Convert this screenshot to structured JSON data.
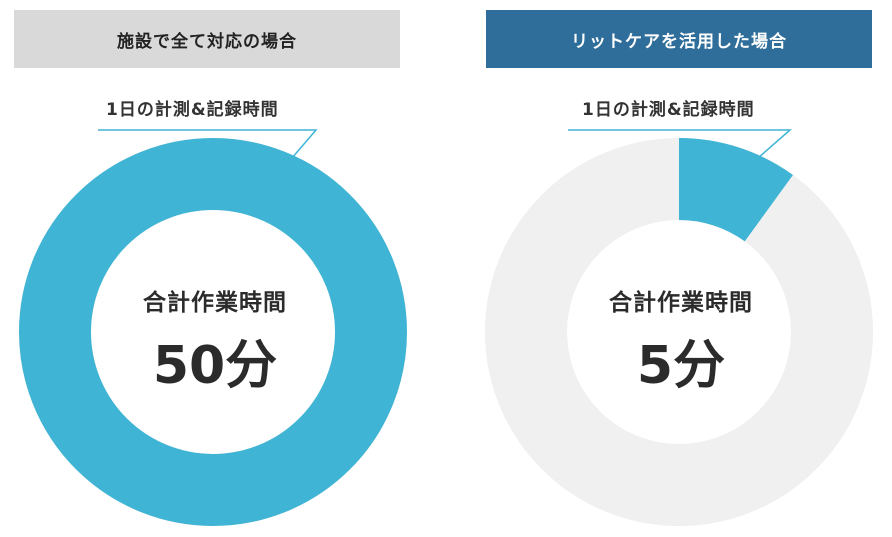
{
  "colors": {
    "accent": "#40b4d4",
    "remaining": "#f0f0f0",
    "header_left_bg": "#d9d9d9",
    "header_right_bg": "#2f6d9a"
  },
  "panels": {
    "left": {
      "header": "施設で全て対応の場合",
      "measure_label": "1日の計測&記録時間",
      "center_label": "合計作業時間",
      "center_value": "50分"
    },
    "right": {
      "header": "リットケアを活用した場合",
      "measure_label": "1日の計測&記録時間",
      "center_label": "合計作業時間",
      "center_value": "5分"
    }
  },
  "chart_data": [
    {
      "type": "pie",
      "title": "施設で全て対応の場合",
      "slices": [
        {
          "label": "1日の計測&記録時間",
          "value": 50
        }
      ],
      "total": 50,
      "center": "50分"
    },
    {
      "type": "pie",
      "title": "リットケアを活用した場合",
      "slices": [
        {
          "label": "1日の計測&記録時間",
          "value": 5
        },
        {
          "label": "",
          "value": 45
        }
      ],
      "total": 50,
      "center": "5分"
    }
  ]
}
